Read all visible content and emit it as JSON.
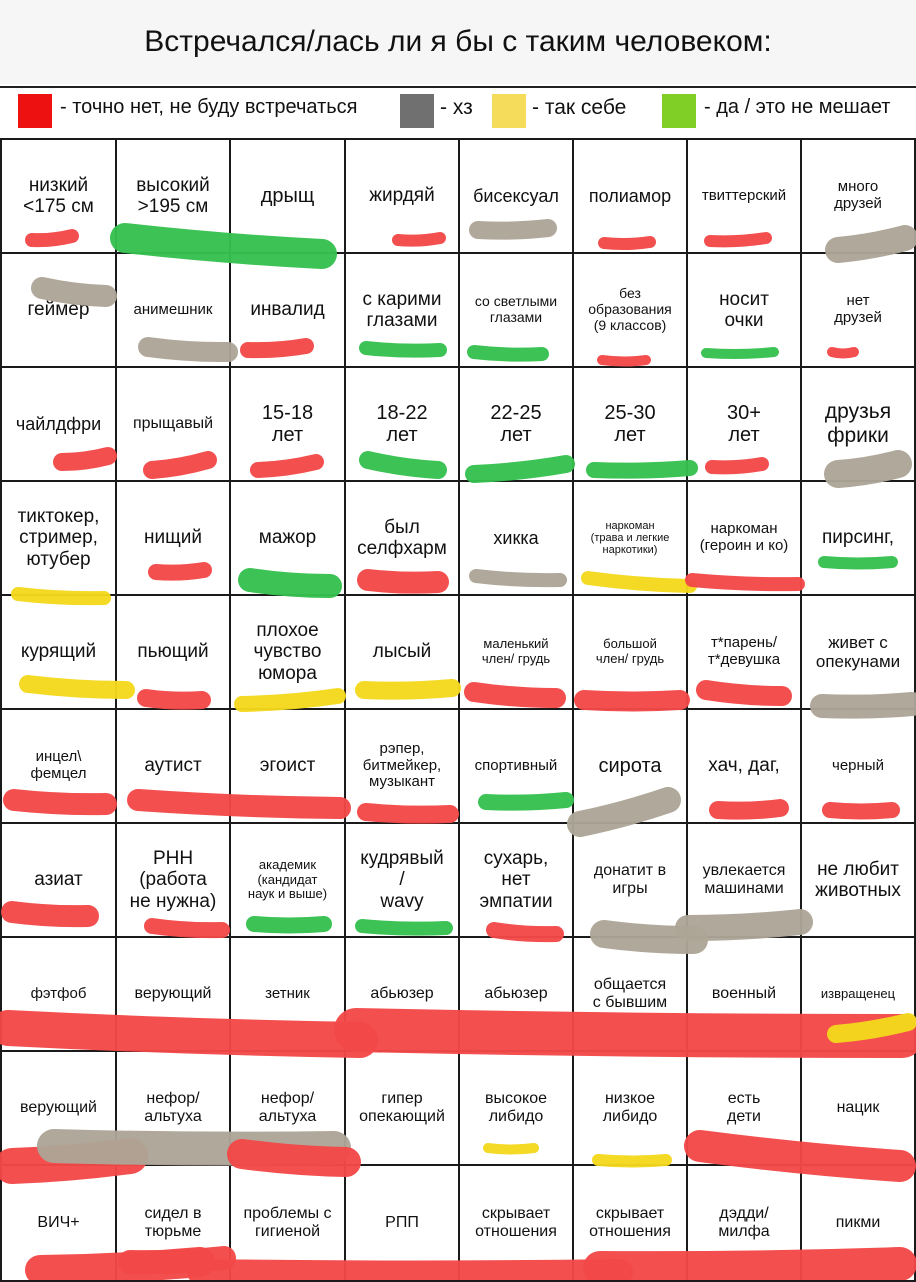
{
  "title": "Встречался/лась ли я бы с таким человеком:",
  "legend": [
    {
      "text": "- точно нет, не буду встречаться",
      "color": "#ee1111"
    },
    {
      "text": "- хз",
      "color": "#707070"
    },
    {
      "text": "- так себе",
      "color": "#f5dc5a"
    },
    {
      "text": "- да / это не мешает",
      "color": "#7fcf26"
    }
  ],
  "stroke_colors": {
    "red": "#f24848",
    "gray": "#ada496",
    "yellow": "#f4d81c",
    "green": "#35c14e"
  },
  "grid": {
    "rows": [
      {
        "cells": [
          {
            "text": "низкий\n<175 см",
            "mark": "red"
          },
          {
            "text": "высокий\n>195 см",
            "mark": "green"
          },
          {
            "text": "дрыщ",
            "mark": ""
          },
          {
            "text": "жирдяй",
            "mark": "red"
          },
          {
            "text": "бисексуал",
            "mark": "gray"
          },
          {
            "text": "полиамор",
            "mark": "red"
          },
          {
            "text": "твиттерский",
            "mark": "red"
          },
          {
            "text": "много\nдрузей",
            "mark": "gray"
          }
        ]
      },
      {
        "cells": [
          {
            "text": "геймер",
            "mark": "gray"
          },
          {
            "text": "анимешник",
            "mark": "gray"
          },
          {
            "text": "инвалид",
            "mark": "red"
          },
          {
            "text": "с карими\nглазами",
            "mark": "green"
          },
          {
            "text": "со светлыми\nглазами",
            "mark": "green"
          },
          {
            "text": "без\nобразования\n(9 классов)",
            "mark": "red"
          },
          {
            "text": "носит\nочки",
            "mark": "green"
          },
          {
            "text": "нет\nдрузей",
            "mark": "red"
          }
        ]
      },
      {
        "cells": [
          {
            "text": "чайлдфри",
            "mark": "red"
          },
          {
            "text": "прыщавый",
            "mark": "red"
          },
          {
            "text": "15-18\nлет",
            "mark": "red"
          },
          {
            "text": "18-22\nлет",
            "mark": "green"
          },
          {
            "text": "22-25\nлет",
            "mark": "green"
          },
          {
            "text": "25-30\nлет",
            "mark": "green"
          },
          {
            "text": "30+\nлет",
            "mark": "red"
          },
          {
            "text": "друзья\nфрики",
            "mark": "gray"
          }
        ]
      },
      {
        "cells": [
          {
            "text": "тиктокер,\nстример,\nютубер",
            "mark": "yellow"
          },
          {
            "text": "нищий",
            "mark": "red"
          },
          {
            "text": "мажор",
            "mark": "green"
          },
          {
            "text": "был\nселфхарм",
            "mark": "red"
          },
          {
            "text": "хикка",
            "mark": "gray"
          },
          {
            "text": "наркоман\n(трава и легкие\nнаркотики)",
            "mark": "yellow"
          },
          {
            "text": "наркоман\n(героин и ко)",
            "mark": "red"
          },
          {
            "text": "пирсинг,",
            "mark": "green"
          }
        ]
      },
      {
        "cells": [
          {
            "text": "курящий",
            "mark": "yellow"
          },
          {
            "text": "пьющий",
            "mark": "red"
          },
          {
            "text": "плохое\nчувство\nюмора",
            "mark": "yellow"
          },
          {
            "text": "лысый",
            "mark": "yellow"
          },
          {
            "text": "маленький\nчлен/ грудь",
            "mark": "red"
          },
          {
            "text": "большой\nчлен/ грудь",
            "mark": "red"
          },
          {
            "text": "т*парень/\nт*девушка",
            "mark": "red"
          },
          {
            "text": "живет с\nопекунами",
            "mark": "gray"
          }
        ]
      },
      {
        "cells": [
          {
            "text": "инцел\\\nфемцел",
            "mark": "red"
          },
          {
            "text": "аутист",
            "mark": "red"
          },
          {
            "text": "эгоист",
            "mark": "red"
          },
          {
            "text": "рэпер,\nбитмейкер,\nмузыкант",
            "mark": "red"
          },
          {
            "text": "спортивный",
            "mark": "green"
          },
          {
            "text": "сирота",
            "mark": "gray"
          },
          {
            "text": "хач, даг,",
            "mark": "red"
          },
          {
            "text": "черный",
            "mark": "red"
          }
        ]
      },
      {
        "cells": [
          {
            "text": "азиат",
            "mark": "red"
          },
          {
            "text": "РНН\n(работа\nне нужна)",
            "mark": "red"
          },
          {
            "text": "академик\n(кандидат\nнаук и выше)",
            "mark": "green"
          },
          {
            "text": "кудрявый\n/\nwavy",
            "mark": "green"
          },
          {
            "text": "сухарь,\nнет\nэмпатии",
            "mark": "red"
          },
          {
            "text": "донатит в\nигры",
            "mark": "gray"
          },
          {
            "text": "увлекается\nмашинами",
            "mark": "gray"
          },
          {
            "text": "не любит\nживотных",
            "mark": ""
          }
        ]
      },
      {
        "cells": [
          {
            "text": "фэтфоб",
            "mark": "red"
          },
          {
            "text": "верующий",
            "mark": "red"
          },
          {
            "text": "зетник",
            "mark": "red"
          },
          {
            "text": "абьюзер",
            "mark": "red"
          },
          {
            "text": "абьюзер",
            "mark": "red"
          },
          {
            "text": "общается\nс бывшим",
            "mark": "red"
          },
          {
            "text": "военный",
            "mark": "red"
          },
          {
            "text": "извращенец",
            "mark": "yellow"
          }
        ]
      },
      {
        "cells": [
          {
            "text": "верующий",
            "mark": "red"
          },
          {
            "text": "нефор/\nальтуха",
            "mark": "gray"
          },
          {
            "text": "нефор/\nальтуха",
            "mark": "gray"
          },
          {
            "text": "гипер\nопекающий",
            "mark": "red"
          },
          {
            "text": "высокое\nлибидо",
            "mark": "yellow"
          },
          {
            "text": "низкое\nлибидо",
            "mark": "yellow"
          },
          {
            "text": "есть\nдети",
            "mark": "red"
          },
          {
            "text": "нацик",
            "mark": "red"
          }
        ]
      },
      {
        "cells": [
          {
            "text": "ВИЧ+",
            "mark": "red"
          },
          {
            "text": "сидел в\nтюрьме",
            "mark": "red"
          },
          {
            "text": "проблемы с\nгигиеной",
            "mark": "red"
          },
          {
            "text": "РПП",
            "mark": "red"
          },
          {
            "text": "скрывает\nотношения",
            "mark": "red"
          },
          {
            "text": "скрывает\nотношения",
            "mark": "red"
          },
          {
            "text": "дэдди/\nмилфа",
            "mark": "red"
          },
          {
            "text": "пикми",
            "mark": "red"
          }
        ]
      }
    ]
  }
}
